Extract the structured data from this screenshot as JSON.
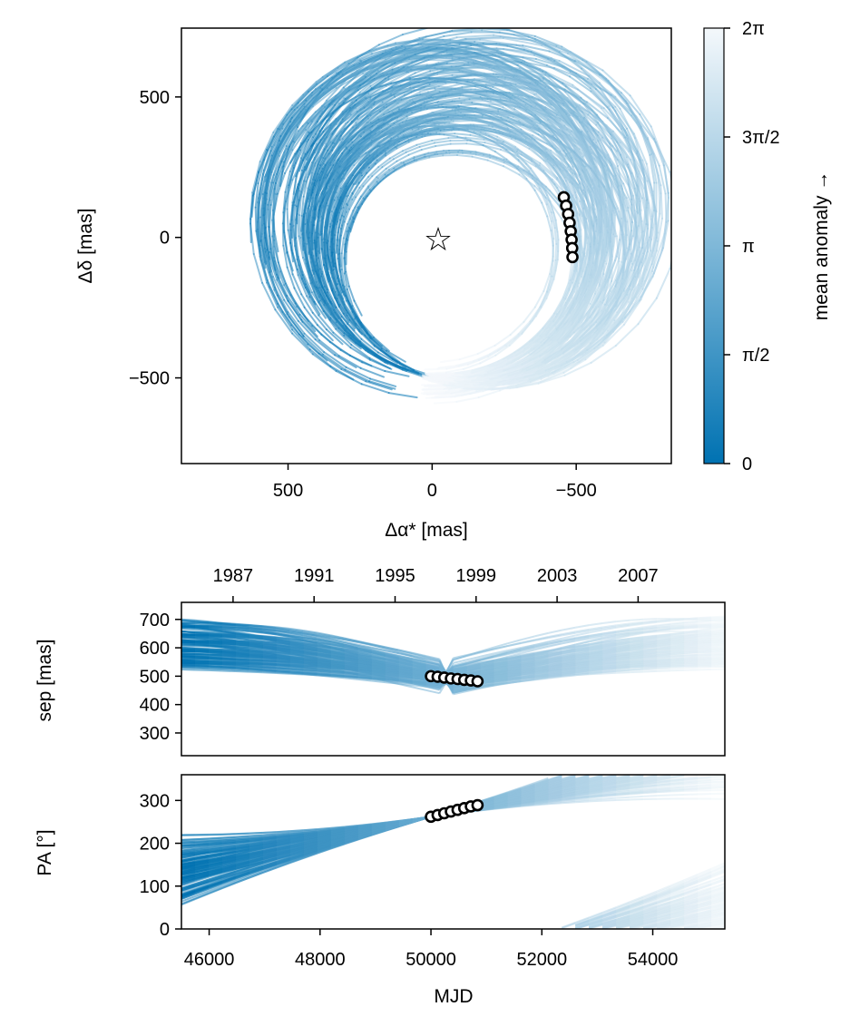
{
  "colors": {
    "dark": "#0072b2",
    "light": "#f4f8fb",
    "marker_edge": "#000000",
    "marker_fill": "#ffffff"
  },
  "chart_data": [
    {
      "type": "line",
      "name": "orbit-sky-plane",
      "title": "",
      "xlabel": "Δα* [mas]",
      "ylabel": "Δδ [mas]",
      "xlim": [
        870,
        -830
      ],
      "ylim": [
        -805,
        745
      ],
      "x_ticks": [
        {
          "value": 500,
          "label": "500"
        },
        {
          "value": 0,
          "label": "0"
        },
        {
          "value": -500,
          "label": "−500"
        }
      ],
      "y_ticks": [
        {
          "value": 500,
          "label": "500"
        },
        {
          "value": 0,
          "label": "0"
        },
        {
          "value": -500,
          "label": "−500"
        }
      ],
      "star": {
        "x": 0,
        "y": 0,
        "symbol": "☆"
      },
      "observations": [
        {
          "x": -457,
          "y": 143
        },
        {
          "x": -465,
          "y": 113
        },
        {
          "x": -472,
          "y": 83
        },
        {
          "x": -477,
          "y": 52
        },
        {
          "x": -481,
          "y": 22
        },
        {
          "x": -484,
          "y": -8
        },
        {
          "x": -486,
          "y": -38
        },
        {
          "x": -487,
          "y": -70
        }
      ],
      "orbit_family": {
        "count": 140,
        "a_range": [
          420,
          640
        ],
        "e_range": [
          0.02,
          0.38
        ],
        "anchor": {
          "r": 495,
          "angle_deg": 270
        }
      }
    },
    {
      "type": "line",
      "name": "separation-vs-time",
      "ylabel": "sep [mas]",
      "ylim": [
        220,
        760
      ],
      "y_ticks": [
        300,
        400,
        500,
        600,
        700
      ],
      "xlim": [
        45500,
        55300
      ],
      "top_axis_ticks": [
        {
          "mjd": 46431,
          "label": "1987"
        },
        {
          "mjd": 47892,
          "label": "1991"
        },
        {
          "mjd": 49353,
          "label": "1995"
        },
        {
          "mjd": 50814,
          "label": "1999"
        },
        {
          "mjd": 52275,
          "label": "2003"
        },
        {
          "mjd": 53736,
          "label": "2007"
        }
      ],
      "observations": [
        {
          "mjd": 50000,
          "sep": 500
        },
        {
          "mjd": 50120,
          "sep": 498
        },
        {
          "mjd": 50240,
          "sep": 495
        },
        {
          "mjd": 50360,
          "sep": 492
        },
        {
          "mjd": 50480,
          "sep": 490
        },
        {
          "mjd": 50600,
          "sep": 487
        },
        {
          "mjd": 50720,
          "sep": 485
        },
        {
          "mjd": 50840,
          "sep": 482
        }
      ]
    },
    {
      "type": "line",
      "name": "position-angle-vs-time",
      "ylabel": "PA [°]",
      "xlabel": "MJD",
      "ylim": [
        0,
        360
      ],
      "y_ticks": [
        0,
        100,
        200,
        300
      ],
      "xlim": [
        45500,
        55300
      ],
      "x_ticks": [
        46000,
        48000,
        50000,
        52000,
        54000
      ],
      "observations": [
        {
          "mjd": 50000,
          "pa": 262
        },
        {
          "mjd": 50120,
          "pa": 266
        },
        {
          "mjd": 50240,
          "pa": 270
        },
        {
          "mjd": 50360,
          "pa": 274
        },
        {
          "mjd": 50480,
          "pa": 278
        },
        {
          "mjd": 50600,
          "pa": 282
        },
        {
          "mjd": 50720,
          "pa": 286
        },
        {
          "mjd": 50840,
          "pa": 289
        }
      ]
    },
    {
      "type": "colorbar",
      "name": "mean-anomaly-colorbar",
      "label": "mean anomaly →",
      "range": [
        0,
        6.2832
      ],
      "ticks": [
        {
          "value": 0,
          "label": "0"
        },
        {
          "value": 1.5708,
          "label": "π/2"
        },
        {
          "value": 3.1416,
          "label": "π"
        },
        {
          "value": 4.7124,
          "label": "3π/2"
        },
        {
          "value": 6.2832,
          "label": "2π"
        }
      ]
    }
  ]
}
